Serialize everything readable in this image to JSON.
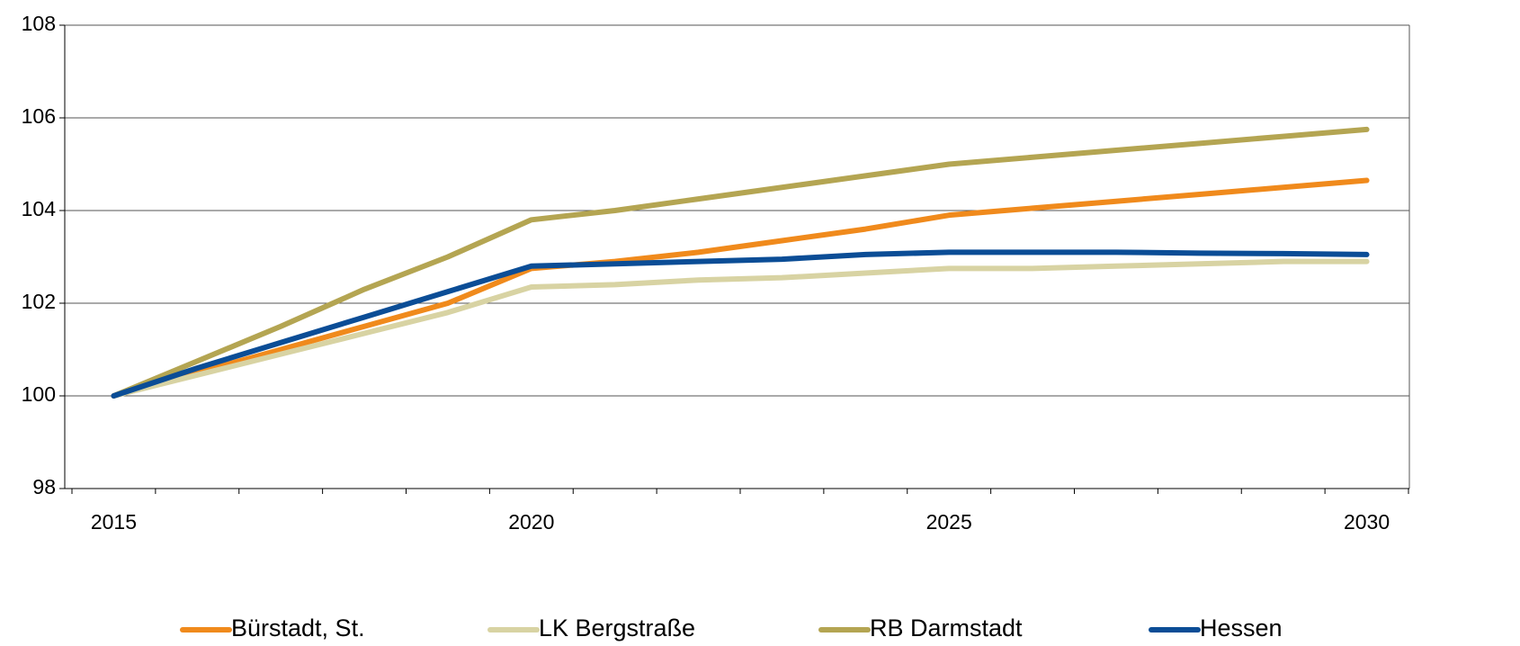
{
  "chart_data": {
    "type": "line",
    "categories": [
      "2015",
      null,
      null,
      null,
      null,
      "2020",
      null,
      null,
      null,
      null,
      "2025",
      null,
      null,
      null,
      null,
      "2030"
    ],
    "series": [
      {
        "name": "Bürstadt, St.",
        "color": "#f08a1c",
        "values": [
          100,
          100.5,
          101.0,
          101.5,
          102.0,
          102.75,
          102.9,
          103.1,
          103.35,
          103.6,
          103.9,
          104.05,
          104.2,
          104.35,
          104.5,
          104.65
        ]
      },
      {
        "name": "LK Bergstraße",
        "color": "#d8d3a3",
        "values": [
          100,
          100.45,
          100.9,
          101.35,
          101.8,
          102.35,
          102.4,
          102.5,
          102.55,
          102.65,
          102.75,
          102.75,
          102.8,
          102.85,
          102.9,
          102.9
        ]
      },
      {
        "name": "RB Darmstadt",
        "color": "#b4a552",
        "values": [
          100,
          100.75,
          101.5,
          102.3,
          103.0,
          103.8,
          104.0,
          104.25,
          104.5,
          104.75,
          105.0,
          105.15,
          105.3,
          105.45,
          105.6,
          105.75
        ]
      },
      {
        "name": "Hessen",
        "color": "#0b4d96",
        "values": [
          100,
          100.6,
          101.15,
          101.7,
          102.25,
          102.8,
          102.85,
          102.9,
          102.95,
          103.05,
          103.1,
          103.1,
          103.1,
          103.08,
          103.07,
          103.05
        ]
      }
    ],
    "ylim": [
      98,
      108
    ],
    "yticks": [
      98,
      100,
      102,
      104,
      106,
      108
    ],
    "grid": true,
    "legend": "bottom"
  }
}
